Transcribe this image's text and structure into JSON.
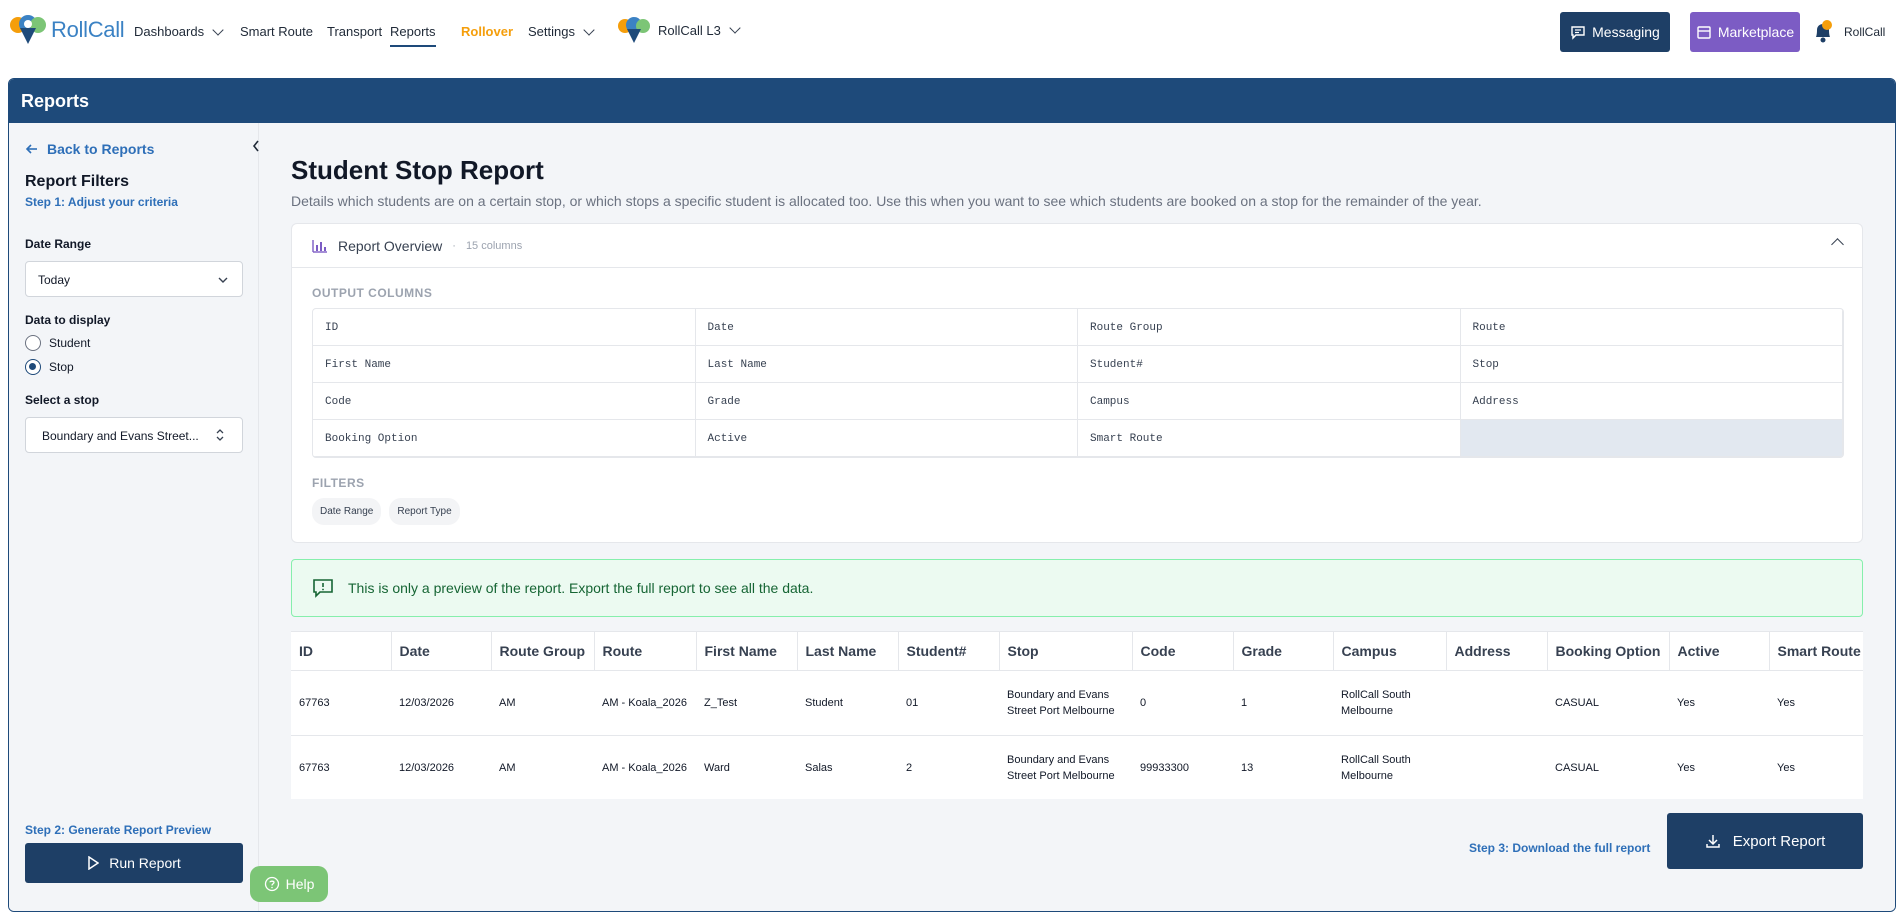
{
  "app": {
    "logo_text": "RollCall",
    "frame_title": "Reports"
  },
  "nav": {
    "dashboards": "Dashboards",
    "smart_route": "Smart Route",
    "transport": "Transport",
    "reports": "Reports",
    "rollover": "Rollover",
    "settings": "Settings",
    "org": "RollCall L3",
    "messaging": "Messaging",
    "marketplace": "Marketplace",
    "user": "RollCall"
  },
  "sidebar": {
    "back": "Back to Reports",
    "title": "Report Filters",
    "step1": "Step 1: Adjust your criteria",
    "date_range_label": "Date Range",
    "date_range_value": "Today",
    "data_label": "Data to display",
    "radio_student": "Student",
    "radio_stop": "Stop",
    "selected_radio": "Stop",
    "stop_label": "Select a stop",
    "stop_value": "Boundary and Evans Street...",
    "step2": "Step 2: Generate Report Preview",
    "run": "Run Report"
  },
  "report": {
    "title": "Student Stop Report",
    "description": "Details which students are on a certain stop, or which stops a specific student is allocated too. Use this when you want to see which students are booked on a stop for the remainder of the year.",
    "overview_title": "Report Overview",
    "overview_sub": "15 columns",
    "output_columns_label": "OUTPUT COLUMNS",
    "output_columns": [
      "ID",
      "Date",
      "Route Group",
      "Route",
      "First Name",
      "Last Name",
      "Student#",
      "Stop",
      "Code",
      "Grade",
      "Campus",
      "Address",
      "Booking Option",
      "Active",
      "Smart Route"
    ],
    "filters_label": "FILTERS",
    "filters": [
      "Date Range",
      "Report Type"
    ],
    "notice": "This is only a preview of the report. Export the full report to see all the data."
  },
  "table": {
    "headers": [
      "ID",
      "Date",
      "Route Group",
      "Route",
      "First Name",
      "Last Name",
      "Student#",
      "Stop",
      "Code",
      "Grade",
      "Campus",
      "Address",
      "Booking Option",
      "Active",
      "Smart Route"
    ],
    "rows": [
      [
        "67763",
        "12/03/2026",
        "AM",
        "AM - Koala_2026",
        "Z_Test",
        "Student",
        "01",
        "Boundary and Evans Street Port Melbourne",
        "0",
        "1",
        "RollCall South Melbourne",
        "",
        "CASUAL",
        "Yes",
        "Yes"
      ],
      [
        "67763",
        "12/03/2026",
        "AM",
        "AM - Koala_2026",
        "Ward",
        "Salas",
        "2",
        "Boundary and Evans Street Port Melbourne",
        "99933300",
        "13",
        "RollCall South Melbourne",
        "",
        "CASUAL",
        "Yes",
        "Yes"
      ]
    ]
  },
  "footer": {
    "step3": "Step 3: Download the full report",
    "export": "Export Report",
    "help": "Help"
  },
  "colors": {
    "primary": "#1e4a7a",
    "button": "#1e3f66",
    "marketplace": "#7c5cc4",
    "rollover": "#f59e0b",
    "link": "#2e6fb8",
    "help": "#7cc576"
  }
}
